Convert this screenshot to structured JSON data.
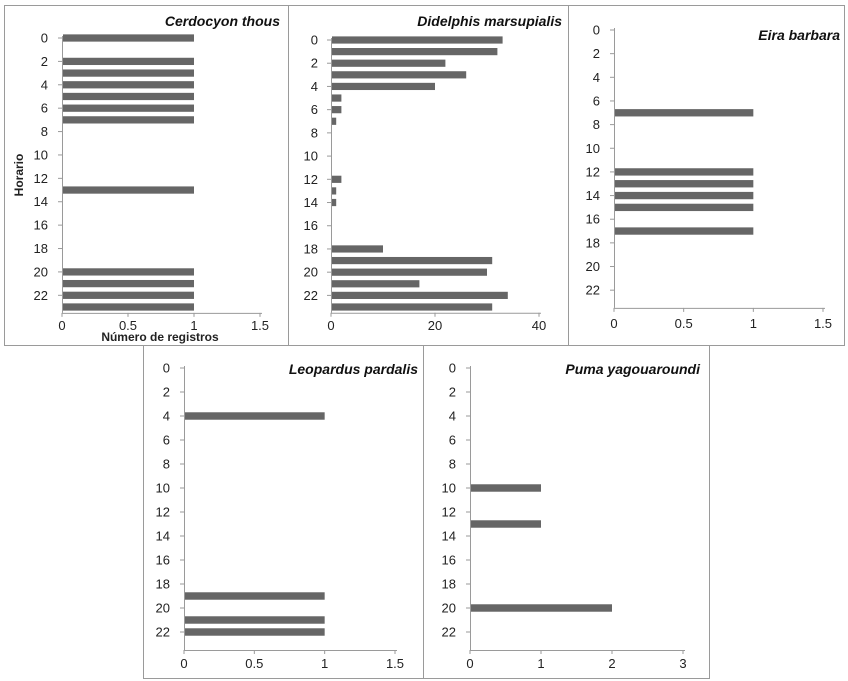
{
  "chart_data": [
    {
      "type": "bar",
      "orientation": "horizontal",
      "title": "Cerdocyon thous",
      "xlabel": "Número de registros",
      "ylabel": "Horario",
      "xlim": [
        0,
        1.5
      ],
      "ylim": [
        0,
        23
      ],
      "x_ticks": [
        "0",
        "0.5",
        "1",
        "1.5"
      ],
      "y_ticks": [
        "0",
        "2",
        "4",
        "6",
        "8",
        "10",
        "12",
        "14",
        "16",
        "18",
        "20",
        "22"
      ],
      "categories": [
        0,
        2,
        3,
        4,
        5,
        6,
        7,
        13,
        20,
        21,
        22,
        23
      ],
      "values": [
        1,
        1,
        1,
        1,
        1,
        1,
        1,
        1,
        1,
        1,
        1,
        1
      ]
    },
    {
      "type": "bar",
      "orientation": "horizontal",
      "title": "Didelphis marsupialis",
      "xlabel": "",
      "ylabel": "",
      "xlim": [
        0,
        40
      ],
      "ylim": [
        0,
        23
      ],
      "x_ticks": [
        "0",
        "20",
        "40"
      ],
      "y_ticks": [
        "0",
        "2",
        "4",
        "6",
        "8",
        "10",
        "12",
        "14",
        "16",
        "18",
        "20",
        "22"
      ],
      "categories": [
        0,
        1,
        2,
        3,
        4,
        5,
        6,
        7,
        12,
        13,
        14,
        18,
        19,
        20,
        21,
        22,
        23
      ],
      "values": [
        33,
        32,
        22,
        26,
        20,
        2,
        2,
        1,
        2,
        1,
        1,
        10,
        31,
        30,
        17,
        34,
        31
      ]
    },
    {
      "type": "bar",
      "orientation": "horizontal",
      "title": "Eira barbara",
      "xlabel": "",
      "ylabel": "",
      "xlim": [
        0,
        1.5
      ],
      "ylim": [
        0,
        23
      ],
      "x_ticks": [
        "0",
        "0.5",
        "1",
        "1.5"
      ],
      "y_ticks": [
        "0",
        "2",
        "4",
        "6",
        "8",
        "10",
        "12",
        "14",
        "16",
        "18",
        "20",
        "22"
      ],
      "categories": [
        7,
        12,
        13,
        14,
        15,
        17
      ],
      "values": [
        1,
        1,
        1,
        1,
        1,
        1
      ]
    },
    {
      "type": "bar",
      "orientation": "horizontal",
      "title": "Leopardus pardalis",
      "xlabel": "",
      "ylabel": "",
      "xlim": [
        0,
        1.5
      ],
      "ylim": [
        0,
        23
      ],
      "x_ticks": [
        "0",
        "0.5",
        "1",
        "1.5"
      ],
      "y_ticks": [
        "0",
        "2",
        "4",
        "6",
        "8",
        "10",
        "12",
        "14",
        "16",
        "18",
        "20",
        "22"
      ],
      "categories": [
        4,
        19,
        21,
        22
      ],
      "values": [
        1,
        1,
        1,
        1
      ]
    },
    {
      "type": "bar",
      "orientation": "horizontal",
      "title": "Puma yagouaroundi",
      "xlabel": "",
      "ylabel": "",
      "xlim": [
        0,
        3
      ],
      "ylim": [
        0,
        23
      ],
      "x_ticks": [
        "0",
        "1",
        "2",
        "3"
      ],
      "y_ticks": [
        "0",
        "2",
        "4",
        "6",
        "8",
        "10",
        "12",
        "14",
        "16",
        "18",
        "20",
        "22"
      ],
      "categories": [
        10,
        13,
        20
      ],
      "values": [
        1,
        1,
        2
      ]
    }
  ],
  "colors": {
    "bar": "#666666",
    "border": "#9a9a9a",
    "axis": "#9a9a9a",
    "text": "#222222"
  }
}
